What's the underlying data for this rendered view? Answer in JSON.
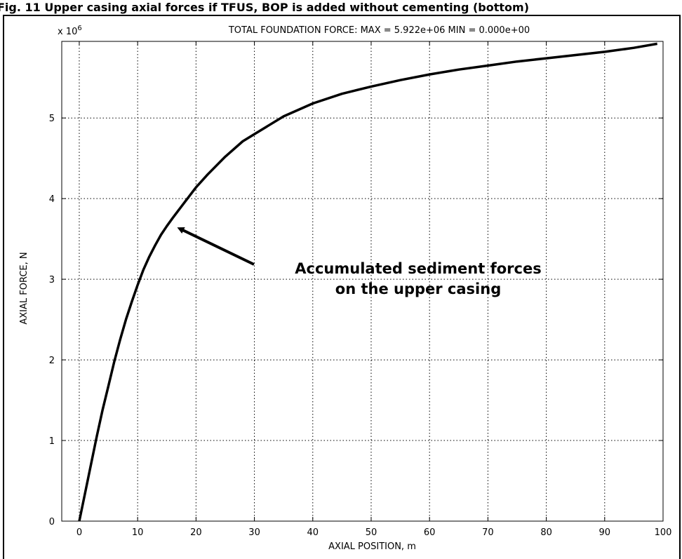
{
  "caption": "Fig. 11 Upper casing axial forces if TFUS, BOP is added without cementing (bottom)",
  "chart_data": {
    "type": "line",
    "title": "TOTAL FOUNDATION FORCE: MAX = 5.922e+06 MIN = 0.000e+00",
    "xlabel": "AXIAL POSITION, m",
    "ylabel": "AXIAL FORCE, N",
    "y_multiplier": "x 10",
    "y_multiplier_exp": "6",
    "xlim": [
      -3,
      100
    ],
    "ylim": [
      0,
      5.95
    ],
    "grid": true,
    "x_ticks": [
      0,
      10,
      20,
      30,
      40,
      50,
      60,
      70,
      80,
      90,
      100
    ],
    "x_tick_labels": [
      "0",
      "10",
      "20",
      "30",
      "40",
      "50",
      "60",
      "70",
      "80",
      "90",
      "100"
    ],
    "y_ticks": [
      0,
      1,
      2,
      3,
      4,
      5
    ],
    "y_tick_labels": [
      "0",
      "1",
      "2",
      "3",
      "4",
      "5"
    ],
    "series": [
      {
        "x": [
          0,
          1,
          2,
          3,
          4,
          5,
          6,
          7,
          8,
          9,
          10,
          11,
          12,
          13,
          14,
          15,
          16,
          18,
          20,
          22,
          25,
          28,
          30,
          35,
          40,
          45,
          50,
          55,
          60,
          65,
          70,
          75,
          80,
          85,
          90,
          95,
          99
        ],
        "values": [
          0,
          0.35,
          0.7,
          1.05,
          1.38,
          1.68,
          1.98,
          2.25,
          2.5,
          2.72,
          2.93,
          3.12,
          3.28,
          3.42,
          3.55,
          3.66,
          3.76,
          3.95,
          4.14,
          4.3,
          4.52,
          4.71,
          4.8,
          5.02,
          5.18,
          5.3,
          5.39,
          5.47,
          5.54,
          5.6,
          5.65,
          5.7,
          5.74,
          5.78,
          5.82,
          5.87,
          5.92
        ]
      }
    ],
    "annotation": {
      "lines": [
        "Accumulated sediment forces",
        "on the upper casing"
      ],
      "arrow_target": [
        16,
        3.68
      ]
    }
  }
}
